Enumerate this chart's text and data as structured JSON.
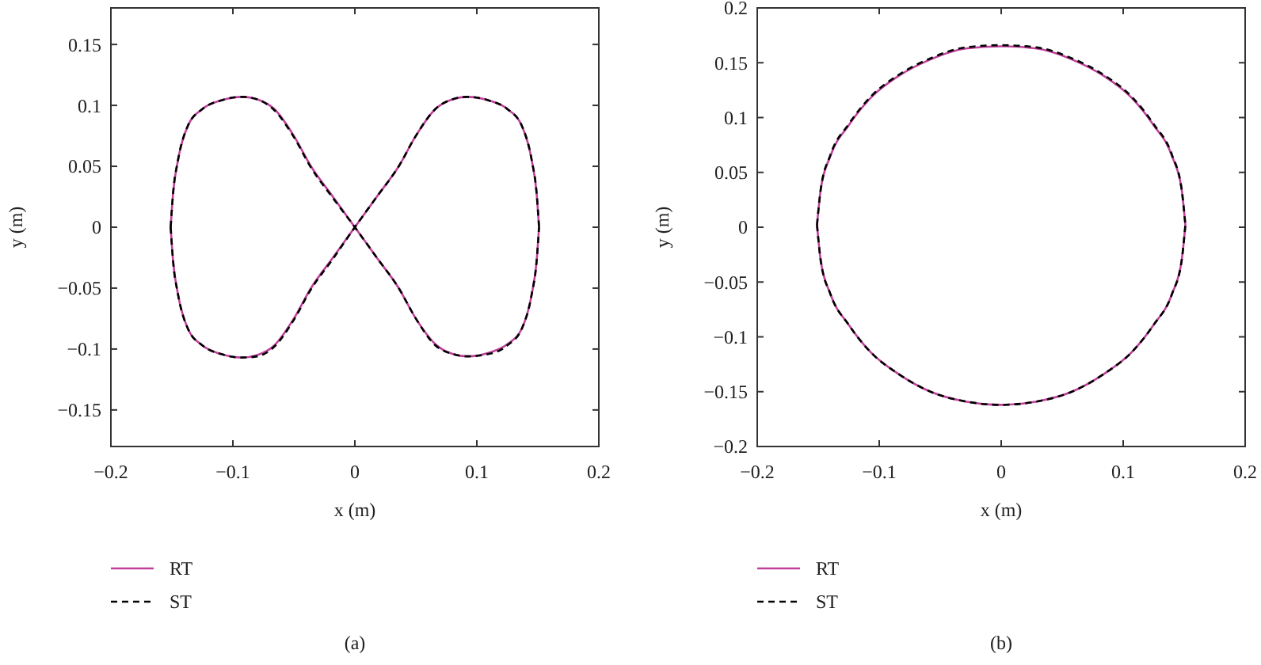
{
  "chart_data": [
    {
      "type": "line",
      "xlabel": "x (m)",
      "ylabel": "y (m)",
      "annotations": [
        "(a)"
      ],
      "xlim": [
        -0.2,
        0.2
      ],
      "xticks": [
        -0.2,
        -0.1,
        0,
        0.1,
        0.2
      ],
      "ylim": [
        -0.18,
        0.18
      ],
      "yticks": [
        -0.15,
        -0.1,
        -0.05,
        0,
        0.05,
        0.1,
        0.15
      ],
      "grid": false,
      "legend": "bottom",
      "series": [
        {
          "name": "RT",
          "color": "#c0409c",
          "line_style": "solid",
          "x": [
            -0.151,
            -0.149,
            -0.145,
            -0.137,
            -0.125,
            -0.11,
            -0.092,
            -0.08,
            -0.066,
            -0.05,
            -0.036,
            -0.018,
            0,
            0.018,
            0.036,
            0.05,
            0.066,
            0.08,
            0.092,
            0.11,
            0.125,
            0.137,
            0.145,
            0.149,
            0.151,
            null,
            -0.151,
            -0.149,
            -0.145,
            -0.137,
            -0.125,
            -0.11,
            -0.092,
            -0.08,
            -0.066,
            -0.05,
            -0.036,
            -0.018,
            0,
            0.018,
            0.036,
            0.05,
            0.066,
            0.08,
            0.092,
            0.11,
            0.125,
            0.137,
            0.145,
            0.149,
            0.151
          ],
          "values": [
            0,
            0.028,
            0.055,
            0.083,
            0.097,
            0.104,
            0.107,
            0.105,
            0.097,
            0.075,
            0.05,
            0.025,
            0,
            -0.025,
            -0.05,
            -0.075,
            -0.096,
            -0.104,
            -0.106,
            -0.103,
            -0.096,
            -0.083,
            -0.055,
            -0.028,
            0,
            null,
            0,
            -0.028,
            -0.055,
            -0.083,
            -0.097,
            -0.104,
            -0.107,
            -0.105,
            -0.097,
            -0.075,
            -0.05,
            -0.025,
            0,
            0.025,
            0.05,
            0.075,
            0.097,
            0.105,
            0.107,
            0.104,
            0.097,
            0.083,
            0.055,
            0.028,
            0
          ]
        },
        {
          "name": "ST",
          "color": "#000000",
          "line_style": "dashed",
          "x": [
            -0.151,
            -0.149,
            -0.145,
            -0.137,
            -0.125,
            -0.11,
            -0.092,
            -0.08,
            -0.066,
            -0.05,
            -0.036,
            -0.018,
            0,
            0.018,
            0.036,
            0.05,
            0.066,
            0.08,
            0.092,
            0.11,
            0.125,
            0.137,
            0.145,
            0.149,
            0.151,
            null,
            -0.151,
            -0.149,
            -0.145,
            -0.137,
            -0.125,
            -0.11,
            -0.092,
            -0.08,
            -0.066,
            -0.05,
            -0.036,
            -0.018,
            0,
            0.018,
            0.036,
            0.05,
            0.066,
            0.08,
            0.092,
            0.11,
            0.125,
            0.137,
            0.145,
            0.149,
            0.151
          ],
          "values": [
            0,
            0.028,
            0.055,
            0.083,
            0.097,
            0.104,
            0.107,
            0.105,
            0.096,
            0.074,
            0.049,
            0.024,
            0,
            -0.025,
            -0.05,
            -0.075,
            -0.097,
            -0.104,
            -0.106,
            -0.104,
            -0.097,
            -0.083,
            -0.055,
            -0.028,
            0,
            null,
            0,
            -0.028,
            -0.055,
            -0.083,
            -0.097,
            -0.104,
            -0.107,
            -0.106,
            -0.098,
            -0.076,
            -0.051,
            -0.026,
            0,
            0.025,
            0.05,
            0.075,
            0.097,
            0.105,
            0.107,
            0.104,
            0.097,
            0.083,
            0.055,
            0.028,
            0
          ]
        }
      ]
    },
    {
      "type": "line",
      "xlabel": "x (m)",
      "ylabel": "y (m)",
      "annotations": [
        "(b)"
      ],
      "xlim": [
        -0.2,
        0.2
      ],
      "xticks": [
        -0.2,
        -0.1,
        0,
        0.1,
        0.2
      ],
      "ylim": [
        -0.2,
        0.2
      ],
      "yticks": [
        -0.2,
        -0.15,
        -0.1,
        -0.05,
        0,
        0.05,
        0.1,
        0.15,
        0.2
      ],
      "grid": false,
      "legend": "bottom",
      "series": [
        {
          "name": "RT",
          "color": "#c0409c",
          "line_style": "solid",
          "x": [
            -0.151,
            -0.148,
            -0.14,
            -0.125,
            -0.107,
            -0.084,
            -0.058,
            -0.029,
            0,
            0.029,
            0.058,
            0.084,
            0.107,
            0.125,
            0.14,
            0.148,
            0.151,
            null,
            -0.151,
            -0.148,
            -0.14,
            -0.125,
            -0.107,
            -0.084,
            -0.058,
            -0.029,
            0,
            0.029,
            0.058,
            0.084,
            0.107,
            0.125,
            0.14,
            0.148,
            0.151
          ],
          "values": [
            0.002,
            0.034,
            0.065,
            0.093,
            0.118,
            0.138,
            0.153,
            0.163,
            0.165,
            0.163,
            0.153,
            0.138,
            0.118,
            0.093,
            0.065,
            0.034,
            0.002,
            null,
            0.002,
            -0.03,
            -0.061,
            -0.089,
            -0.114,
            -0.134,
            -0.15,
            -0.159,
            -0.162,
            -0.159,
            -0.15,
            -0.134,
            -0.114,
            -0.089,
            -0.061,
            -0.03,
            0.002
          ]
        },
        {
          "name": "ST",
          "color": "#000000",
          "line_style": "dashed",
          "x": [
            -0.151,
            -0.148,
            -0.14,
            -0.125,
            -0.107,
            -0.084,
            -0.058,
            -0.029,
            0,
            0.029,
            0.058,
            0.084,
            0.107,
            0.125,
            0.14,
            0.148,
            0.151,
            null,
            -0.151,
            -0.148,
            -0.14,
            -0.125,
            -0.107,
            -0.084,
            -0.058,
            -0.029,
            0,
            0.029,
            0.058,
            0.084,
            0.107,
            0.125,
            0.14,
            0.148,
            0.151
          ],
          "values": [
            0.002,
            0.034,
            0.066,
            0.094,
            0.119,
            0.139,
            0.154,
            0.164,
            0.166,
            0.164,
            0.154,
            0.139,
            0.119,
            0.094,
            0.066,
            0.034,
            0.002,
            null,
            0.002,
            -0.03,
            -0.061,
            -0.089,
            -0.114,
            -0.134,
            -0.15,
            -0.159,
            -0.162,
            -0.159,
            -0.15,
            -0.134,
            -0.114,
            -0.089,
            -0.061,
            -0.03,
            0.002
          ]
        }
      ]
    }
  ]
}
